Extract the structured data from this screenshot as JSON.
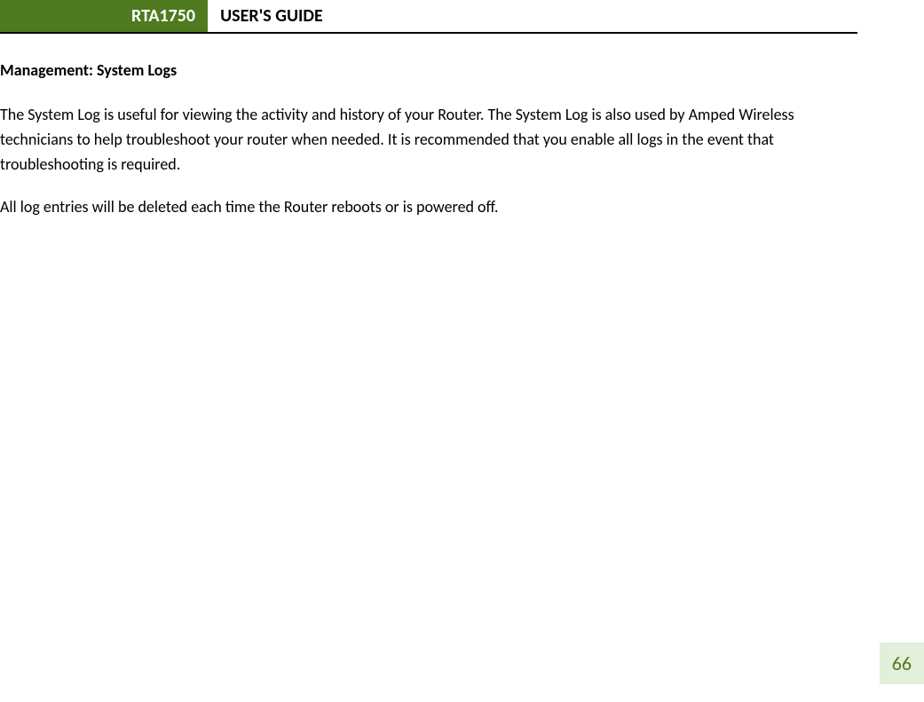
{
  "header": {
    "model": "RTA1750",
    "title": "USER'S GUIDE"
  },
  "content": {
    "section_heading": "Management: System Logs",
    "paragraph_1": "The System Log is useful for viewing the activity and history of your Router. The System Log is also used by Amped Wireless technicians to help troubleshoot your router when needed. It is recommended that you enable all logs in the event that troubleshooting is required.",
    "paragraph_2": "All log entries will be deleted each time the Router reboots or is powered off."
  },
  "page_number": "66",
  "colors": {
    "header_bg": "#4f7a1f",
    "header_text": "#ffffff",
    "body_text": "#000000",
    "page_num_bg": "#e2efda",
    "page_num_text": "#4f7a1f",
    "border": "#000000",
    "background": "#ffffff"
  },
  "typography": {
    "header_fontsize": 20,
    "heading_fontsize": 18,
    "body_fontsize": 18,
    "page_num_fontsize": 22,
    "font_family": "Calibri"
  }
}
